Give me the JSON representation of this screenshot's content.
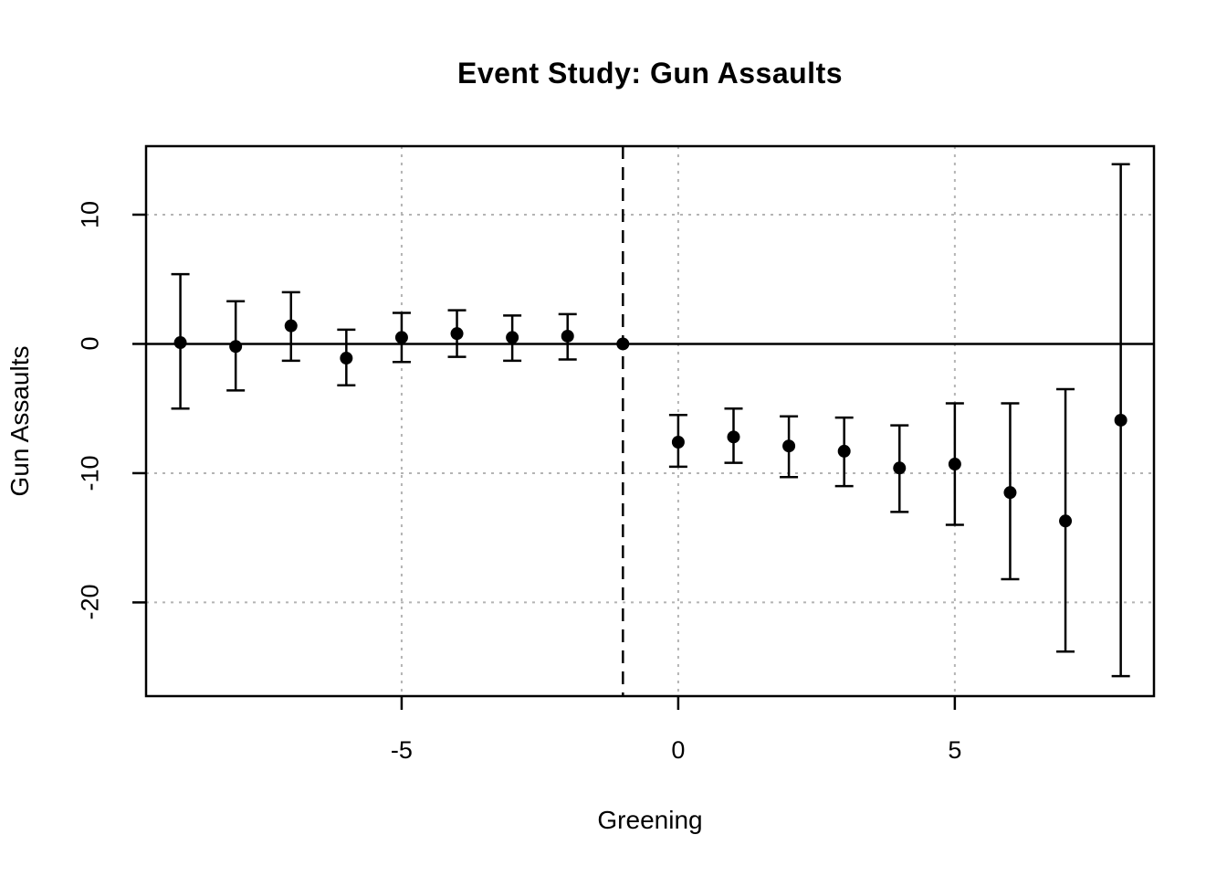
{
  "chart_data": {
    "type": "scatter",
    "subtype": "event-study-errorbar",
    "title": "Event Study: Gun Assaults",
    "xlabel": "Greening",
    "ylabel": "Gun Assaults",
    "xlim": [
      -9.62,
      8.6
    ],
    "ylim": [
      -27.25,
      15.3
    ],
    "xticks": [
      -5,
      0,
      5
    ],
    "yticks": [
      10,
      0,
      -10,
      -20
    ],
    "grid": true,
    "legend_position": "none",
    "zero_line_y": 0,
    "reference_line_x": -1,
    "reference_period_x": -1,
    "colors": {
      "point": "#000000",
      "error_bar": "#000000",
      "zero_line": "#000000",
      "reference_line": "#000000",
      "gridline": "#b4b4b4",
      "box": "#000000",
      "background": "#ffffff"
    },
    "series": [
      {
        "name": "estimate",
        "x": [
          -9,
          -8,
          -7,
          -6,
          -5,
          -4,
          -3,
          -2,
          -1,
          0,
          1,
          2,
          3,
          4,
          5,
          6,
          7,
          8
        ],
        "y": [
          0.1,
          -0.2,
          1.4,
          -1.1,
          0.5,
          0.8,
          0.5,
          0.6,
          0.0,
          -7.6,
          -7.2,
          -7.9,
          -8.3,
          -9.6,
          -9.3,
          -11.5,
          -13.7,
          -5.9
        ],
        "ci_low": [
          -5.0,
          -3.6,
          -1.3,
          -3.2,
          -1.4,
          -1.0,
          -1.3,
          -1.2,
          null,
          -9.5,
          -9.2,
          -10.3,
          -11.0,
          -13.0,
          -14.0,
          -18.2,
          -23.8,
          -25.7
        ],
        "ci_high": [
          5.4,
          3.3,
          4.0,
          1.1,
          2.4,
          2.6,
          2.2,
          2.3,
          null,
          -5.5,
          -5.0,
          -5.6,
          -5.7,
          -6.3,
          -4.6,
          -4.6,
          -3.5,
          13.9
        ]
      }
    ]
  }
}
